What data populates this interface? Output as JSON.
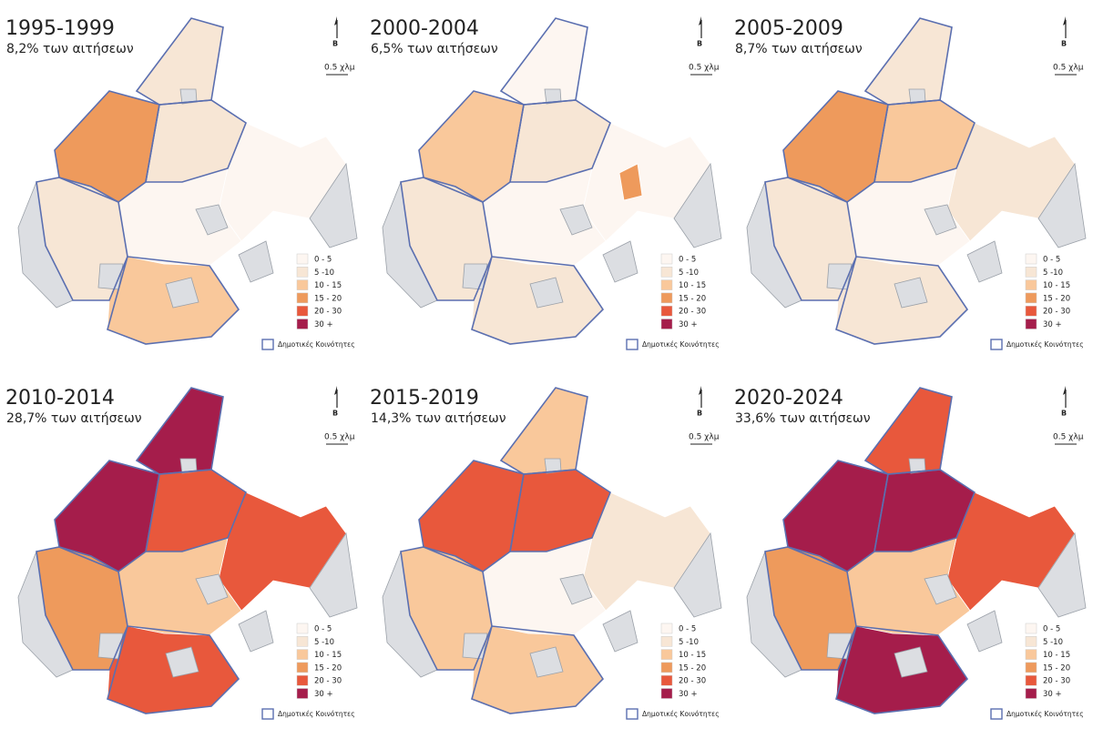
{
  "panels": [
    {
      "title": "1995-1999",
      "subtitle": "8,2% των αιτήσεων"
    },
    {
      "title": "2000-2004",
      "subtitle": "6,5% των αιτήσεων"
    },
    {
      "title": "2005-2009",
      "subtitle": "8,7% των αιτήσεων"
    },
    {
      "title": "2010-2014",
      "subtitle": "28,7% των αιτήσεων"
    },
    {
      "title": "2015-2019",
      "subtitle": "14,3% των αιτήσεων"
    },
    {
      "title": "2020-2024",
      "subtitle": "33,6% των αιτήσεων"
    }
  ],
  "north": "Β",
  "scale": "0.5 χλμ",
  "legend": {
    "classes": [
      "0 - 5",
      "5 -10",
      "10 - 15",
      "15 - 20",
      "20 - 30",
      "30 +"
    ],
    "boundary": "Δημοτικές Κοινότητες"
  }
}
